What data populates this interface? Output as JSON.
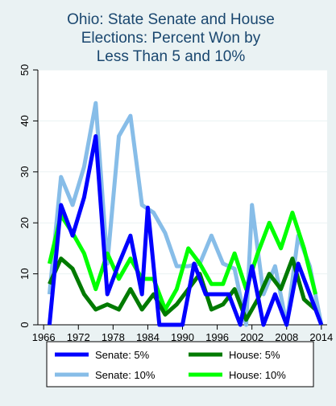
{
  "colors": {
    "background": "#eaf2f3",
    "plot_bg": "#ffffff",
    "title": "#1a476f",
    "senate5": "#0000ff",
    "senate10": "#87bde8",
    "house5": "#007a00",
    "house10": "#00ff00"
  },
  "chart_data": {
    "type": "line",
    "title": [
      "Ohio: State Senate and House",
      "Elections: Percent Won by",
      "Less Than 5 and 10%"
    ],
    "xlabel": "",
    "ylabel": "",
    "xlim": [
      1965,
      2015
    ],
    "ylim": [
      0,
      50
    ],
    "x_ticks": [
      1966,
      1972,
      1978,
      1984,
      1990,
      1996,
      2002,
      2008,
      2014
    ],
    "y_ticks": [
      0,
      10,
      20,
      30,
      40,
      50
    ],
    "grid": "horizontal",
    "legend": "bottom",
    "series": [
      {
        "name": "Senate: 5%",
        "color_key": "senate5",
        "points": [
          [
            1967,
            0
          ],
          [
            1969,
            23.5
          ],
          [
            1971,
            17.5
          ],
          [
            1973,
            25
          ],
          [
            1975,
            37
          ],
          [
            1977,
            6
          ],
          [
            1979,
            12
          ],
          [
            1981,
            17.5
          ],
          [
            1983,
            6
          ],
          [
            1984,
            23
          ],
          [
            1986,
            0
          ],
          [
            1988,
            0
          ],
          [
            1990,
            0
          ],
          [
            1992,
            12
          ],
          [
            1994,
            6
          ],
          [
            1996,
            6
          ],
          [
            1998,
            6
          ],
          [
            2000,
            0
          ],
          [
            2002,
            11.5
          ],
          [
            2004,
            0
          ],
          [
            2006,
            6
          ],
          [
            2008,
            0
          ],
          [
            2010,
            12
          ],
          [
            2012,
            6
          ],
          [
            2014,
            0
          ]
        ]
      },
      {
        "name": "Senate: 10%",
        "color_key": "senate10",
        "points": [
          [
            1967,
            6
          ],
          [
            1969,
            29
          ],
          [
            1971,
            23.5
          ],
          [
            1973,
            31
          ],
          [
            1975,
            43.5
          ],
          [
            1977,
            12
          ],
          [
            1979,
            37
          ],
          [
            1981,
            41
          ],
          [
            1983,
            23.5
          ],
          [
            1985,
            22
          ],
          [
            1987,
            18
          ],
          [
            1989,
            11.5
          ],
          [
            1991,
            11.5
          ],
          [
            1993,
            12
          ],
          [
            1995,
            17.5
          ],
          [
            1997,
            12
          ],
          [
            1999,
            11
          ],
          [
            2001,
            0
          ],
          [
            2002,
            23.5
          ],
          [
            2004,
            6
          ],
          [
            2006,
            11.5
          ],
          [
            2008,
            0
          ],
          [
            2010,
            17.5
          ],
          [
            2012,
            11.5
          ],
          [
            2014,
            0
          ]
        ]
      },
      {
        "name": "House: 5%",
        "color_key": "house5",
        "points": [
          [
            1967,
            8
          ],
          [
            1969,
            13
          ],
          [
            1971,
            11
          ],
          [
            1973,
            6
          ],
          [
            1975,
            3
          ],
          [
            1977,
            4
          ],
          [
            1979,
            3
          ],
          [
            1981,
            7
          ],
          [
            1983,
            3
          ],
          [
            1985,
            6
          ],
          [
            1987,
            2
          ],
          [
            1989,
            4
          ],
          [
            1991,
            7
          ],
          [
            1993,
            10
          ],
          [
            1995,
            3
          ],
          [
            1997,
            4
          ],
          [
            1999,
            7
          ],
          [
            2001,
            1
          ],
          [
            2003,
            5
          ],
          [
            2005,
            10
          ],
          [
            2007,
            7
          ],
          [
            2009,
            13
          ],
          [
            2011,
            5
          ],
          [
            2013,
            3
          ]
        ]
      },
      {
        "name": "House: 10%",
        "color_key": "house10",
        "points": [
          [
            1967,
            12
          ],
          [
            1969,
            21.5
          ],
          [
            1971,
            18
          ],
          [
            1973,
            14
          ],
          [
            1975,
            7
          ],
          [
            1977,
            14
          ],
          [
            1979,
            9
          ],
          [
            1981,
            13
          ],
          [
            1983,
            9
          ],
          [
            1985,
            9
          ],
          [
            1987,
            3
          ],
          [
            1989,
            7
          ],
          [
            1991,
            15
          ],
          [
            1993,
            12
          ],
          [
            1995,
            8
          ],
          [
            1997,
            8
          ],
          [
            1999,
            14
          ],
          [
            2001,
            7
          ],
          [
            2003,
            14
          ],
          [
            2005,
            20
          ],
          [
            2007,
            15
          ],
          [
            2009,
            22
          ],
          [
            2011,
            15
          ],
          [
            2013,
            6
          ]
        ]
      }
    ]
  }
}
